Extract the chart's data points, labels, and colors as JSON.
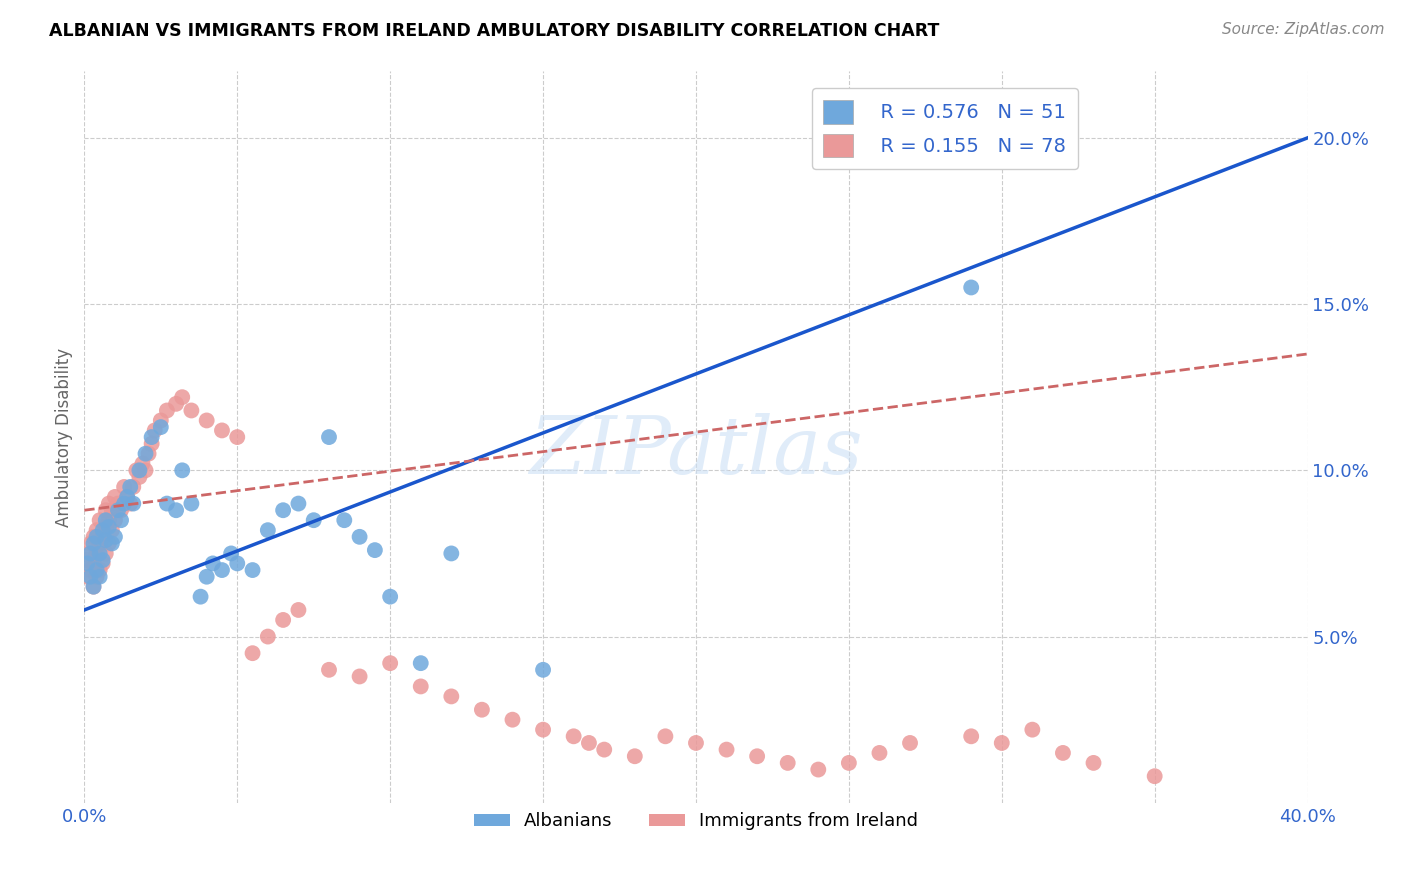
{
  "title": "ALBANIAN VS IMMIGRANTS FROM IRELAND AMBULATORY DISABILITY CORRELATION CHART",
  "source": "Source: ZipAtlas.com",
  "ylabel": "Ambulatory Disability",
  "xlim": [
    0.0,
    0.4
  ],
  "ylim": [
    0.0,
    0.22
  ],
  "y_ticks_right": [
    0.05,
    0.1,
    0.15,
    0.2
  ],
  "y_tick_labels_right": [
    "5.0%",
    "10.0%",
    "15.0%",
    "20.0%"
  ],
  "legend_blue_R": "0.576",
  "legend_blue_N": "51",
  "legend_pink_R": "0.155",
  "legend_pink_N": "78",
  "blue_color": "#6fa8dc",
  "pink_color": "#ea9999",
  "trendline_blue_color": "#1a56cc",
  "trendline_pink_color": "#cc6666",
  "watermark": "ZIPatlas",
  "blue_points_x": [
    0.001,
    0.002,
    0.002,
    0.003,
    0.003,
    0.004,
    0.004,
    0.005,
    0.005,
    0.006,
    0.006,
    0.007,
    0.007,
    0.008,
    0.009,
    0.01,
    0.011,
    0.012,
    0.013,
    0.014,
    0.015,
    0.016,
    0.018,
    0.02,
    0.022,
    0.025,
    0.027,
    0.03,
    0.032,
    0.035,
    0.038,
    0.04,
    0.042,
    0.045,
    0.048,
    0.05,
    0.055,
    0.06,
    0.065,
    0.07,
    0.075,
    0.08,
    0.085,
    0.09,
    0.095,
    0.1,
    0.11,
    0.12,
    0.15,
    0.29,
    0.31
  ],
  "blue_points_y": [
    0.072,
    0.075,
    0.068,
    0.078,
    0.065,
    0.08,
    0.07,
    0.075,
    0.068,
    0.082,
    0.073,
    0.079,
    0.085,
    0.083,
    0.078,
    0.08,
    0.088,
    0.085,
    0.09,
    0.092,
    0.095,
    0.09,
    0.1,
    0.105,
    0.11,
    0.113,
    0.09,
    0.088,
    0.1,
    0.09,
    0.062,
    0.068,
    0.072,
    0.07,
    0.075,
    0.072,
    0.07,
    0.082,
    0.088,
    0.09,
    0.085,
    0.11,
    0.085,
    0.08,
    0.076,
    0.062,
    0.042,
    0.075,
    0.04,
    0.155,
    0.2
  ],
  "pink_points_x": [
    0.001,
    0.001,
    0.002,
    0.002,
    0.002,
    0.003,
    0.003,
    0.003,
    0.004,
    0.004,
    0.004,
    0.005,
    0.005,
    0.005,
    0.006,
    0.006,
    0.007,
    0.007,
    0.007,
    0.008,
    0.008,
    0.008,
    0.009,
    0.009,
    0.01,
    0.01,
    0.011,
    0.012,
    0.013,
    0.014,
    0.015,
    0.016,
    0.017,
    0.018,
    0.019,
    0.02,
    0.021,
    0.022,
    0.023,
    0.025,
    0.027,
    0.03,
    0.032,
    0.035,
    0.04,
    0.045,
    0.05,
    0.055,
    0.06,
    0.065,
    0.07,
    0.08,
    0.09,
    0.1,
    0.11,
    0.12,
    0.13,
    0.14,
    0.15,
    0.16,
    0.165,
    0.17,
    0.18,
    0.19,
    0.2,
    0.21,
    0.22,
    0.23,
    0.24,
    0.25,
    0.26,
    0.27,
    0.29,
    0.3,
    0.31,
    0.32,
    0.33,
    0.35
  ],
  "pink_points_y": [
    0.068,
    0.073,
    0.07,
    0.078,
    0.075,
    0.065,
    0.072,
    0.08,
    0.075,
    0.068,
    0.082,
    0.07,
    0.078,
    0.085,
    0.072,
    0.08,
    0.075,
    0.083,
    0.088,
    0.078,
    0.085,
    0.09,
    0.082,
    0.088,
    0.085,
    0.092,
    0.09,
    0.088,
    0.095,
    0.092,
    0.09,
    0.095,
    0.1,
    0.098,
    0.102,
    0.1,
    0.105,
    0.108,
    0.112,
    0.115,
    0.118,
    0.12,
    0.122,
    0.118,
    0.115,
    0.112,
    0.11,
    0.045,
    0.05,
    0.055,
    0.058,
    0.04,
    0.038,
    0.042,
    0.035,
    0.032,
    0.028,
    0.025,
    0.022,
    0.02,
    0.018,
    0.016,
    0.014,
    0.02,
    0.018,
    0.016,
    0.014,
    0.012,
    0.01,
    0.012,
    0.015,
    0.018,
    0.02,
    0.018,
    0.022,
    0.015,
    0.012,
    0.008
  ]
}
